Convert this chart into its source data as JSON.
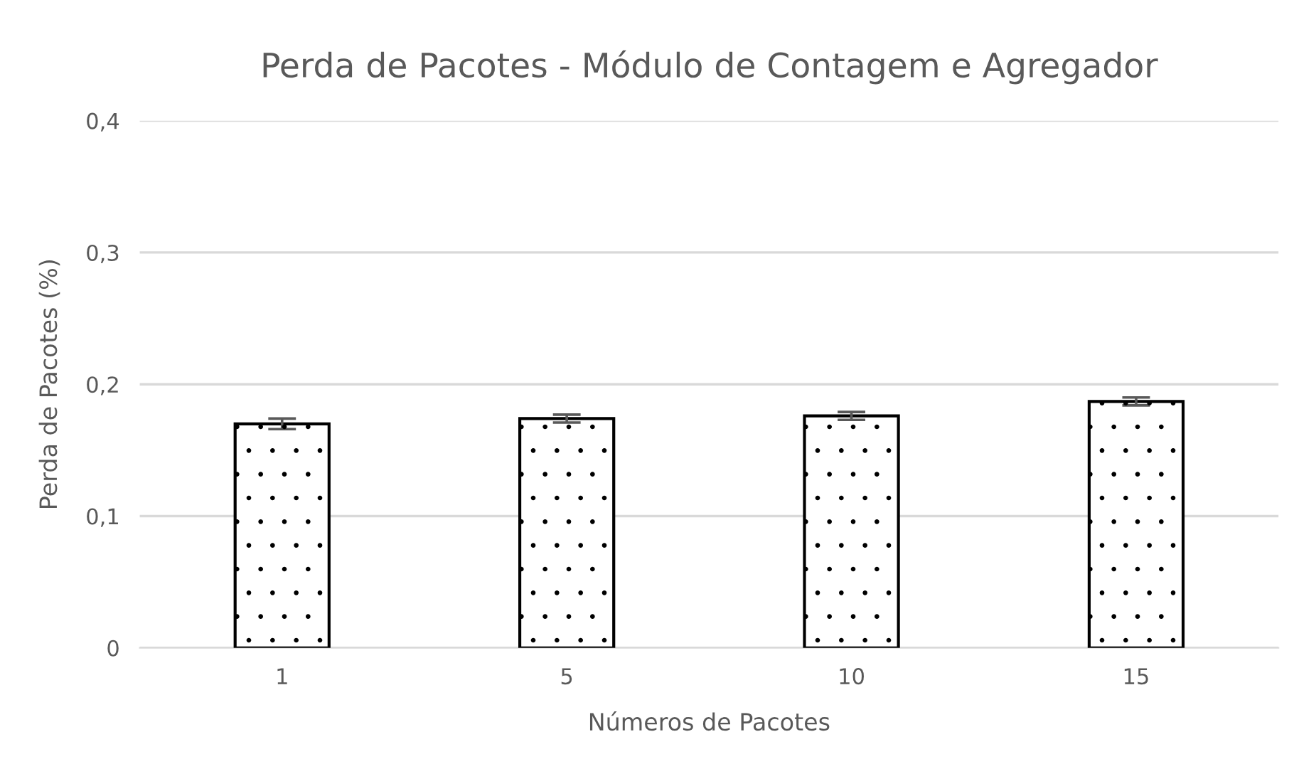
{
  "chart_data": {
    "type": "bar",
    "title": "Perda de Pacotes - Módulo de Contagem e Agregador",
    "xlabel": "Números de Pacotes",
    "ylabel": "Perda de Pacotes (%)",
    "categories": [
      "1",
      "5",
      "10",
      "15"
    ],
    "values": [
      0.17,
      0.174,
      0.176,
      0.187
    ],
    "errors": [
      0.004,
      0.003,
      0.003,
      0.003
    ],
    "color": "#ffffff",
    "ylim": [
      0,
      0.4
    ],
    "yticks": [
      0,
      {
        "value": 0.1,
        "label": "0,1"
      },
      {
        "value": 0.2,
        "label": "0,2"
      },
      {
        "value": 0.3,
        "label": "0,3"
      },
      {
        "value": 0.4,
        "label": "0,4"
      }
    ],
    "grid": "y"
  }
}
